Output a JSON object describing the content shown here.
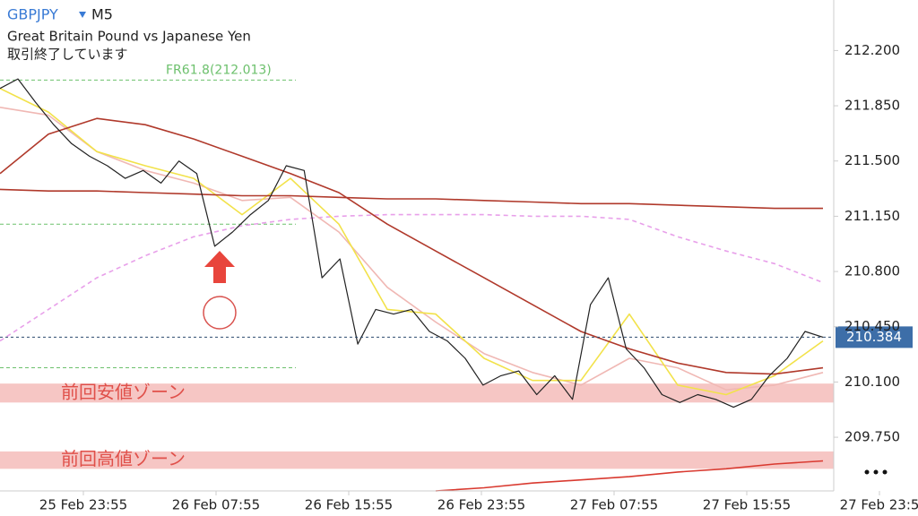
{
  "header": {
    "symbol": "GBPJPY",
    "timeframe": "M5",
    "name": "Great Britain Pound vs Japanese Yen",
    "status": "取引終了しています"
  },
  "chart_data": {
    "type": "line",
    "ylim": [
      209.41,
      212.52
    ],
    "yticks": [
      {
        "value": 212.2,
        "label": "212.200"
      },
      {
        "value": 211.85,
        "label": "211.850"
      },
      {
        "value": 211.5,
        "label": "211.500"
      },
      {
        "value": 211.15,
        "label": "211.150"
      },
      {
        "value": 210.8,
        "label": "210.800"
      },
      {
        "value": 210.45,
        "label": "210.450"
      },
      {
        "value": 210.1,
        "label": "210.100"
      },
      {
        "value": 209.75,
        "label": "209.750"
      }
    ],
    "x_labels": [
      "25 Feb 23:55",
      "26 Feb 07:55",
      "26 Feb 15:55",
      "26 Feb 23:55",
      "27 Feb 07:55",
      "27 Feb 15:55",
      "27 Feb 23:5"
    ],
    "series": [
      {
        "color": "#222222",
        "values": [
          211.96,
          212.02,
          211.87,
          211.73,
          211.61,
          211.53,
          211.47,
          211.39,
          211.44,
          211.36,
          211.5,
          211.42,
          210.96,
          211.05,
          211.16,
          211.25,
          211.47,
          211.44,
          210.76,
          210.88,
          210.34,
          210.56,
          210.53,
          210.56,
          210.42,
          210.36,
          210.25,
          210.08,
          210.14,
          210.17,
          210.02,
          210.14,
          209.99,
          210.59,
          210.76,
          210.31,
          210.19,
          210.02,
          209.97,
          210.02,
          209.99,
          209.94,
          209.99,
          210.14,
          210.25,
          210.42,
          210.384
        ]
      }
    ],
    "moving_averages": [
      {
        "color": "#e8a0ea",
        "dashed": true,
        "values": [
          210.36,
          210.56,
          210.76,
          210.9,
          211.02,
          211.09,
          211.13,
          211.15,
          211.16,
          211.16,
          211.16,
          211.15,
          211.15,
          211.13,
          211.02,
          210.93,
          210.85,
          210.73
        ]
      },
      {
        "color": "#f0b8b4",
        "dashed": false,
        "values": [
          211.84,
          211.79,
          211.56,
          211.44,
          211.36,
          211.25,
          211.27,
          211.05,
          210.7,
          210.48,
          210.28,
          210.16,
          210.08,
          210.25,
          210.19,
          210.05,
          210.08,
          210.16
        ]
      },
      {
        "color": "#f2e24a",
        "dashed": false,
        "values": [
          211.96,
          211.81,
          211.56,
          211.47,
          211.39,
          211.16,
          211.39,
          211.1,
          210.56,
          210.53,
          210.25,
          210.11,
          210.11,
          210.53,
          210.08,
          210.02,
          210.14,
          210.36
        ]
      },
      {
        "color": "#b0392b",
        "dashed": false,
        "values": [
          211.42,
          211.67,
          211.77,
          211.73,
          211.64,
          211.53,
          211.42,
          211.3,
          211.1,
          210.93,
          210.76,
          210.59,
          210.42,
          210.31,
          210.22,
          210.16,
          210.15,
          210.19
        ]
      },
      {
        "color": "#b0392b",
        "dashed": false,
        "values": [
          211.32,
          211.31,
          211.31,
          211.3,
          211.29,
          211.28,
          211.28,
          211.27,
          211.26,
          211.26,
          211.25,
          211.24,
          211.23,
          211.23,
          211.22,
          211.21,
          211.2,
          211.2
        ]
      },
      {
        "color": "#d93a30",
        "dashed": false,
        "values": [
          null,
          null,
          null,
          null,
          null,
          null,
          null,
          null,
          null,
          209.41,
          209.43,
          209.46,
          209.48,
          209.5,
          209.53,
          209.55,
          209.58,
          209.6
        ]
      }
    ],
    "levels": [
      {
        "value": 212.013,
        "label": "FR61.8(212.013)",
        "color": "#6cc06c"
      },
      {
        "value": 211.1,
        "color": "#6cc06c"
      },
      {
        "value": 210.19,
        "color": "#6cc06c"
      }
    ],
    "zones": [
      {
        "label": "前回安値ゾーン",
        "range": [
          209.97,
          210.09
        ],
        "color": "#f6c6c4"
      },
      {
        "label": "前回高値ゾーン",
        "range": [
          209.55,
          209.66
        ],
        "color": "#f6c6c4"
      }
    ],
    "current_price": 210.384
  }
}
